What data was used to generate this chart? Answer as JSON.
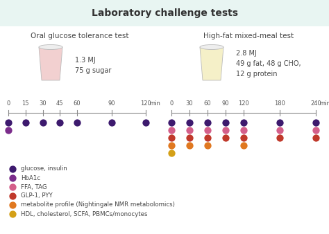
{
  "title": "Laboratory challenge tests",
  "title_bg": "#e8f5f2",
  "bg_color": "#ffffff",
  "left_test_title": "Oral glucose tolerance test",
  "right_test_title": "High-fat mixed-meal test",
  "left_drink_info": "1.3 MJ\n75 g sugar",
  "right_drink_info": "2.8 MJ\n49 g fat, 48 g CHO,\n12 g protein",
  "left_times": [
    0,
    15,
    30,
    45,
    60,
    90,
    120
  ],
  "right_times": [
    0,
    30,
    60,
    90,
    120,
    180,
    240
  ],
  "colors": {
    "glucose_insulin": "#3d1a6e",
    "HbA1c": "#7b2d8b",
    "FFA_TAG": "#d45f8a",
    "GLP1_PYY": "#c0392b",
    "metabolite": "#e07820",
    "HDL": "#d4a017"
  },
  "left_dots": {
    "glucose_insulin": [
      0,
      15,
      30,
      45,
      60,
      90,
      120
    ],
    "HbA1c": [
      0
    ]
  },
  "right_dots": {
    "glucose_insulin": [
      0,
      30,
      60,
      90,
      120,
      180,
      240
    ],
    "FFA_TAG": [
      0,
      30,
      60,
      90,
      120,
      180,
      240
    ],
    "GLP1_PYY": [
      0,
      30,
      60,
      90,
      120,
      180,
      240
    ],
    "metabolite": [
      0,
      30,
      60,
      120
    ],
    "HDL": [
      0
    ]
  },
  "legend_items": [
    {
      "color": "#3d1a6e",
      "label": "glucose, insulin"
    },
    {
      "color": "#7b2d8b",
      "label": "HbA1c"
    },
    {
      "color": "#d45f8a",
      "label": "FFA, TAG"
    },
    {
      "color": "#c0392b",
      "label": "GLP-1, PYY"
    },
    {
      "color": "#e07820",
      "label": "metabolite profile (Nightingale NMR metabolomics)"
    },
    {
      "color": "#d4a017",
      "label": "HDL, cholesterol, SCFA, PBMCs/monocytes"
    }
  ],
  "left_cup_color": "#f2d0d0",
  "right_cup_color": "#f5f0c8",
  "cup_edge_color": "#cccccc"
}
